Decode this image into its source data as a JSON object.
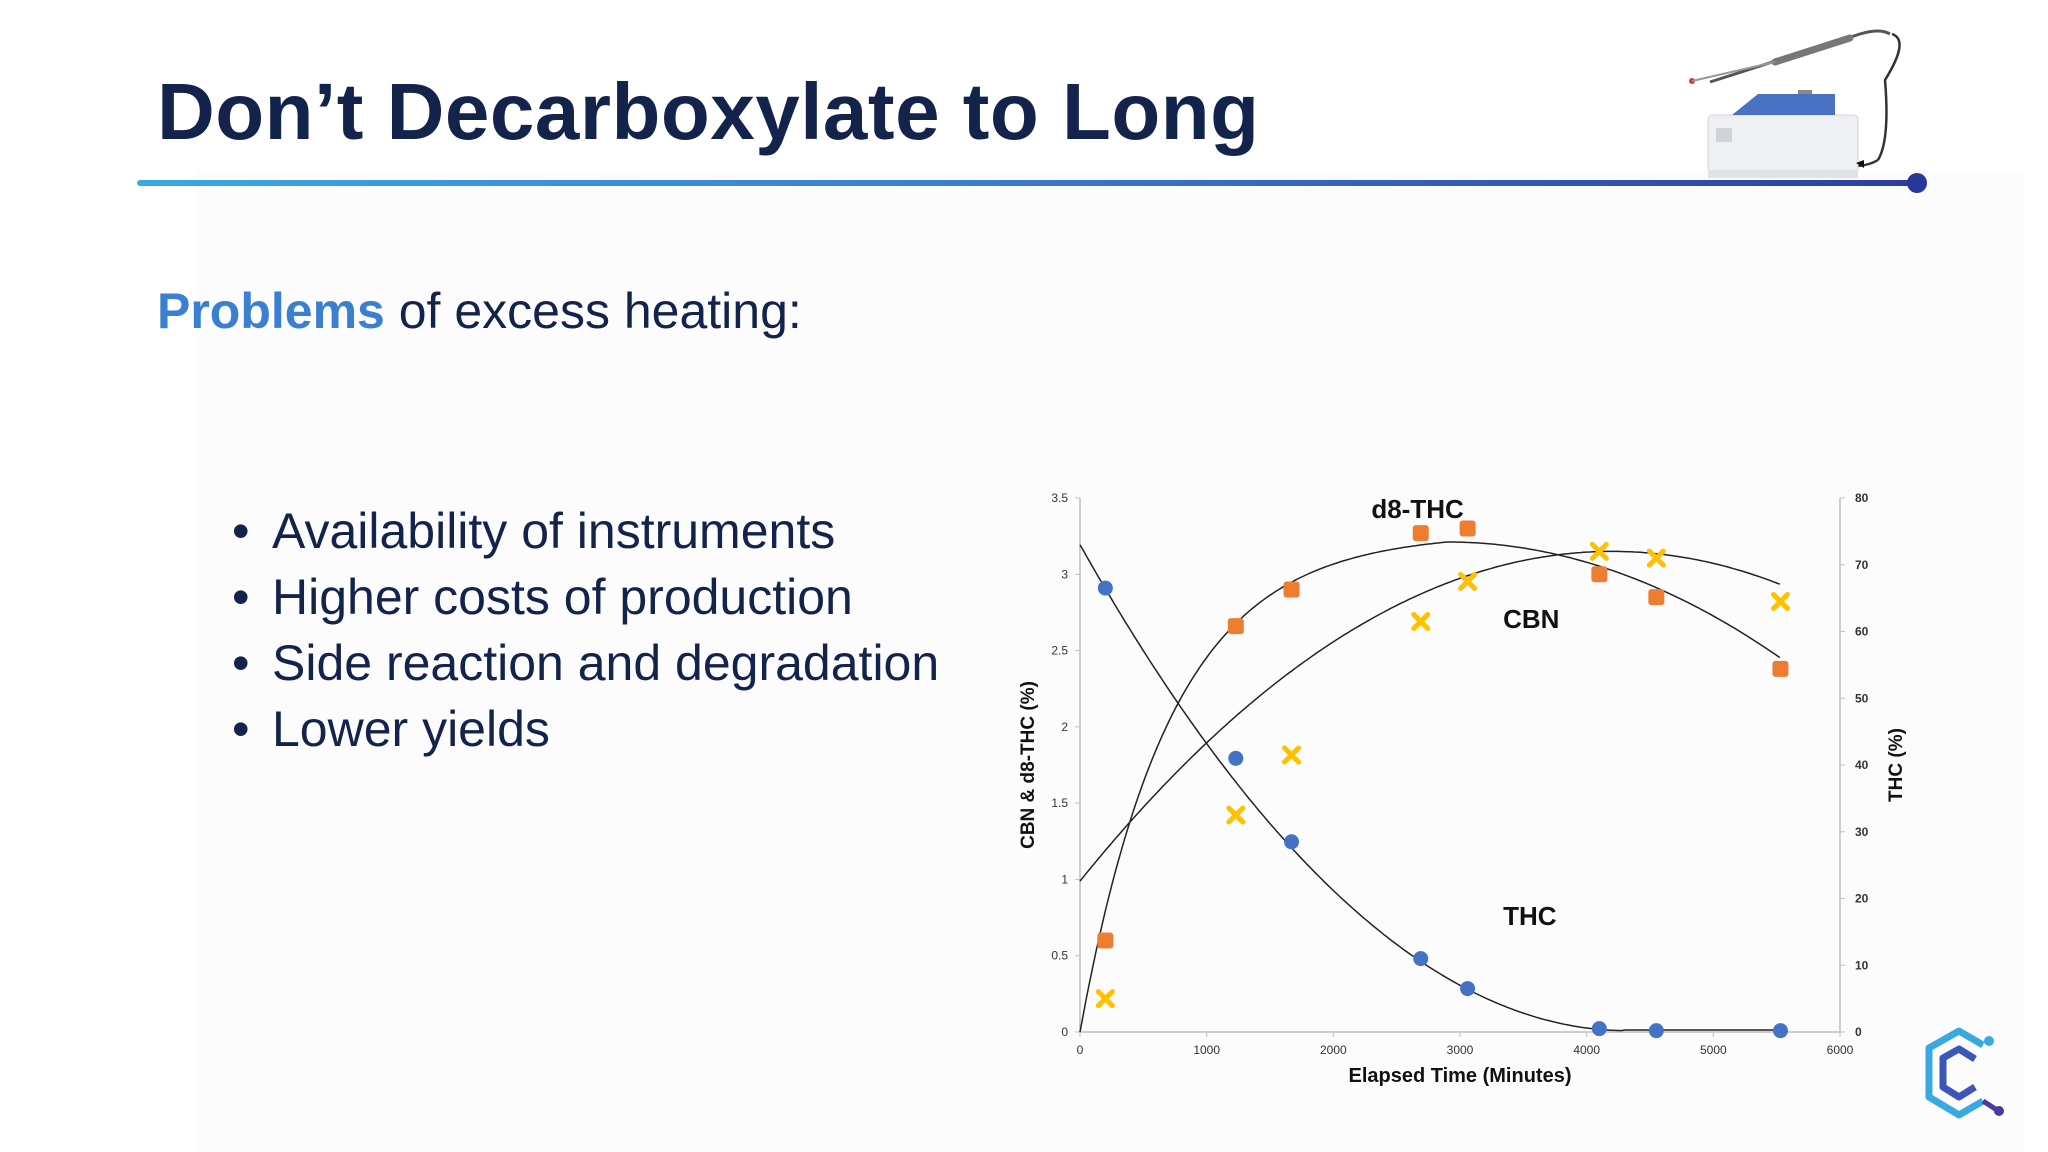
{
  "slide": {
    "title": "Don’t Decarboxylate to Long",
    "subtitle_highlight": "Problems",
    "subtitle_rest": " of excess heating:",
    "bullets": [
      "Availability of instruments",
      "Higher costs of production",
      "Side reaction and degradation",
      "Lower yields"
    ],
    "colors": {
      "title": "#13234b",
      "accent": "#3b7fd0",
      "rule_start": "#3aa9e0",
      "rule_end": "#2c3f9a"
    },
    "icons": [
      "decarboxylator-device-icon",
      "company-c-logo-icon"
    ]
  },
  "chart_data": {
    "type": "scatter",
    "xlabel": "Elapsed Time (Minutes)",
    "ylabel": "CBN & d8-THC (%)",
    "y2label": "THC (%)",
    "xlim": [
      0,
      6000
    ],
    "ylim": [
      0,
      3.5
    ],
    "y2lim": [
      0,
      80
    ],
    "x_ticks": [
      "0",
      "1000",
      "2000",
      "3000",
      "4000",
      "5000",
      "6000"
    ],
    "y_ticks": [
      "0",
      "0.5",
      "1",
      "1.5",
      "2",
      "2.5",
      "3",
      "3.5"
    ],
    "y2_ticks": [
      "0",
      "10",
      "20",
      "30",
      "40",
      "50",
      "60",
      "70",
      "80"
    ],
    "grid": false,
    "series": [
      {
        "name": "d8-THC",
        "axis": "left",
        "color": "#ed7d31",
        "marker": "square",
        "x": [
          200,
          1230,
          1670,
          2690,
          3060,
          4100,
          4550,
          5530
        ],
        "y": [
          0.6,
          2.66,
          2.9,
          3.27,
          3.3,
          3.0,
          2.85,
          2.38
        ]
      },
      {
        "name": "CBN",
        "axis": "right",
        "color": "#ffc000",
        "marker": "cross",
        "x": [
          200,
          1230,
          1670,
          2690,
          3060,
          4100,
          4550,
          5530
        ],
        "y": [
          5,
          32.5,
          41.5,
          61.5,
          67.5,
          72,
          71,
          64.5
        ]
      },
      {
        "name": "THC",
        "axis": "right",
        "color": "#4472c4",
        "marker": "circle",
        "x": [
          200,
          1230,
          1670,
          2690,
          3060,
          4100,
          4550,
          5530
        ],
        "y": [
          66.5,
          41,
          28.5,
          11,
          6.5,
          0.5,
          0.2,
          0.2
        ]
      }
    ],
    "annotations": [
      "d8-THC",
      "CBN",
      "THC"
    ]
  }
}
